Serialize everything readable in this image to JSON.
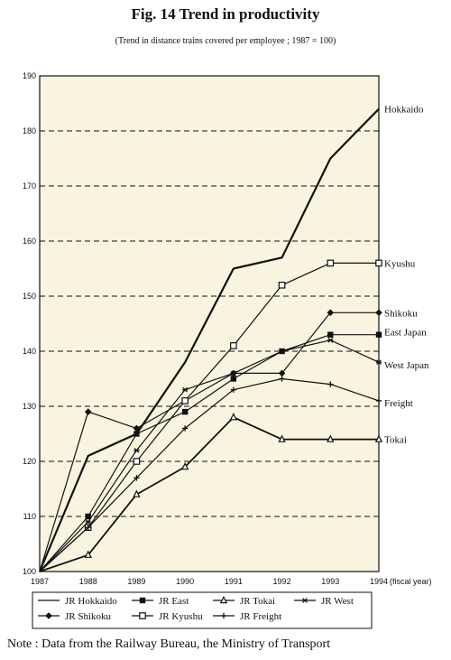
{
  "title": "Fig. 14 Trend in productivity",
  "subtitle": "(Trend in distance trains covered per employee ; 1987 = 100)",
  "note": "Note :  Data from the Railway Bureau, the Ministry of Transport",
  "colors": {
    "plot_background": "#f8f4df",
    "line": "#111111"
  },
  "chart_data": {
    "type": "line",
    "title": "Fig. 14 Trend in productivity",
    "subtitle": "(Trend in distance trains covered per employee ; 1987 = 100)",
    "xlabel": "",
    "ylabel": "",
    "x_unit_label": "(fiscal year)",
    "x": [
      1987,
      1988,
      1989,
      1990,
      1991,
      1992,
      1993,
      1994
    ],
    "ylim": [
      100,
      190
    ],
    "yticks": [
      100,
      110,
      120,
      130,
      140,
      150,
      160,
      170,
      180,
      190
    ],
    "grid": "horizontal dashed",
    "legend_position": "bottom",
    "series": [
      {
        "name": "JR Hokkaido",
        "end_label": "Hokkaido",
        "marker": "none",
        "values": [
          100,
          121,
          125,
          138,
          155,
          157,
          175,
          184
        ]
      },
      {
        "name": "JR East",
        "end_label": "East Japan",
        "marker": "square-filled",
        "values": [
          100,
          110,
          125,
          129,
          135,
          140,
          143,
          143
        ]
      },
      {
        "name": "JR Tokai",
        "end_label": "Tokai",
        "marker": "triangle",
        "values": [
          100,
          103,
          114,
          119,
          128,
          124,
          124,
          124
        ]
      },
      {
        "name": "JR West",
        "end_label": "West Japan",
        "marker": "star",
        "values": [
          100,
          109,
          122,
          133,
          136,
          140,
          142,
          138
        ]
      },
      {
        "name": "JR Shikoku",
        "end_label": "Shikoku",
        "marker": "diamond-filled",
        "values": [
          100,
          129,
          126,
          131,
          136,
          136,
          147,
          147
        ]
      },
      {
        "name": "JR Kyushu",
        "end_label": "Kyushu",
        "marker": "square-open",
        "values": [
          100,
          108,
          120,
          131,
          141,
          152,
          156,
          156
        ]
      },
      {
        "name": "JR Freight",
        "end_label": "Freight",
        "marker": "plus",
        "values": [
          100,
          108,
          117,
          126,
          133,
          135,
          134,
          131
        ]
      }
    ]
  }
}
